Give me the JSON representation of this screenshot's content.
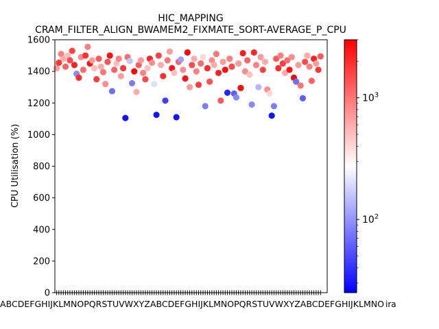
{
  "chart_data": {
    "type": "scatter",
    "title": "HIC_MAPPING",
    "subtitle": "CRAM_FILTER_ALIGN_BWAMEM2_FIXMATE_SORT-AVERAGE_P_CPU",
    "xlabel": "",
    "ylabel": "CPU Utilisation (%)",
    "ylim": [
      0,
      1600
    ],
    "yticks": [
      0,
      200,
      400,
      600,
      800,
      1000,
      1200,
      1400,
      1600
    ],
    "x_tick_labels_note": "dense overlapping species labels (unreadable), last ends with 'ira'",
    "x_tick_label_tail": "ira",
    "grid": false,
    "legend": "none",
    "colorbar": {
      "scale": "log",
      "range": [
        25,
        3000
      ],
      "ticks": [
        {
          "value": 100,
          "label": "10",
          "exp": "2"
        },
        {
          "value": 1000,
          "label": "10",
          "exp": "3"
        }
      ],
      "colormap": "bwr",
      "low_color": "#0000ff",
      "mid_color": "#ffffff",
      "high_color": "#ff0000"
    },
    "points": [
      {
        "x": 1,
        "y": 1420,
        "c": 700
      },
      {
        "x": 2,
        "y": 1455,
        "c": 1800
      },
      {
        "x": 3,
        "y": 1510,
        "c": 900
      },
      {
        "x": 4,
        "y": 1480,
        "c": 600
      },
      {
        "x": 5,
        "y": 1430,
        "c": 1200
      },
      {
        "x": 6,
        "y": 1500,
        "c": 500
      },
      {
        "x": 7,
        "y": 1470,
        "c": 1500
      },
      {
        "x": 8,
        "y": 1530,
        "c": 1600
      },
      {
        "x": 9,
        "y": 1440,
        "c": 2200
      },
      {
        "x": 10,
        "y": 1385,
        "c": 90
      },
      {
        "x": 11,
        "y": 1360,
        "c": 2000
      },
      {
        "x": 12,
        "y": 1490,
        "c": 800
      },
      {
        "x": 13,
        "y": 1410,
        "c": 1100
      },
      {
        "x": 14,
        "y": 1500,
        "c": 1900
      },
      {
        "x": 15,
        "y": 1555,
        "c": 900
      },
      {
        "x": 16,
        "y": 1450,
        "c": 2500
      },
      {
        "x": 17,
        "y": 1470,
        "c": 700
      },
      {
        "x": 18,
        "y": 1420,
        "c": 500
      },
      {
        "x": 19,
        "y": 1350,
        "c": 1700
      },
      {
        "x": 20,
        "y": 1480,
        "c": 1300
      },
      {
        "x": 21,
        "y": 1430,
        "c": 600
      },
      {
        "x": 22,
        "y": 1395,
        "c": 1000
      },
      {
        "x": 23,
        "y": 1320,
        "c": 800
      },
      {
        "x": 24,
        "y": 1460,
        "c": 1400
      },
      {
        "x": 25,
        "y": 1500,
        "c": 2600
      },
      {
        "x": 26,
        "y": 1275,
        "c": 70
      },
      {
        "x": 27,
        "y": 1410,
        "c": 1200
      },
      {
        "x": 28,
        "y": 1450,
        "c": 500
      },
      {
        "x": 29,
        "y": 1480,
        "c": 900
      },
      {
        "x": 30,
        "y": 1370,
        "c": 700
      },
      {
        "x": 31,
        "y": 1420,
        "c": 1800
      },
      {
        "x": 32,
        "y": 1105,
        "c": 30
      },
      {
        "x": 33,
        "y": 1490,
        "c": 1100
      },
      {
        "x": 34,
        "y": 1465,
        "c": 160
      },
      {
        "x": 35,
        "y": 1325,
        "c": 80
      },
      {
        "x": 36,
        "y": 1400,
        "c": 2800
      },
      {
        "x": 37,
        "y": 1270,
        "c": 600
      },
      {
        "x": 38,
        "y": 1440,
        "c": 1300
      },
      {
        "x": 39,
        "y": 1470,
        "c": 700
      },
      {
        "x": 40,
        "y": 1390,
        "c": 900
      },
      {
        "x": 41,
        "y": 1350,
        "c": 1500
      },
      {
        "x": 42,
        "y": 1420,
        "c": 500
      },
      {
        "x": 43,
        "y": 1480,
        "c": 2100
      },
      {
        "x": 44,
        "y": 1455,
        "c": 800
      },
      {
        "x": 45,
        "y": 1320,
        "c": 200
      },
      {
        "x": 46,
        "y": 1125,
        "c": 30
      },
      {
        "x": 47,
        "y": 1500,
        "c": 1600
      },
      {
        "x": 48,
        "y": 1440,
        "c": 600
      },
      {
        "x": 49,
        "y": 1370,
        "c": 1900
      },
      {
        "x": 50,
        "y": 1215,
        "c": 45
      },
      {
        "x": 51,
        "y": 1470,
        "c": 1000
      },
      {
        "x": 52,
        "y": 1525,
        "c": 700
      },
      {
        "x": 53,
        "y": 1420,
        "c": 2400
      },
      {
        "x": 54,
        "y": 1390,
        "c": 500
      },
      {
        "x": 55,
        "y": 1110,
        "c": 30
      },
      {
        "x": 56,
        "y": 1460,
        "c": 1200
      },
      {
        "x": 57,
        "y": 1475,
        "c": 110
      },
      {
        "x": 58,
        "y": 1410,
        "c": 800
      },
      {
        "x": 59,
        "y": 1355,
        "c": 2500
      },
      {
        "x": 60,
        "y": 1520,
        "c": 2900
      },
      {
        "x": 61,
        "y": 1300,
        "c": 700
      },
      {
        "x": 62,
        "y": 1440,
        "c": 1500
      },
      {
        "x": 63,
        "y": 1480,
        "c": 600
      },
      {
        "x": 64,
        "y": 1400,
        "c": 900
      },
      {
        "x": 65,
        "y": 1315,
        "c": 1700
      },
      {
        "x": 66,
        "y": 1450,
        "c": 1100
      },
      {
        "x": 67,
        "y": 1490,
        "c": 400
      },
      {
        "x": 68,
        "y": 1180,
        "c": 80
      },
      {
        "x": 69,
        "y": 1420,
        "c": 2000
      },
      {
        "x": 70,
        "y": 1335,
        "c": 1400
      },
      {
        "x": 71,
        "y": 1470,
        "c": 800
      },
      {
        "x": 72,
        "y": 1440,
        "c": 600
      },
      {
        "x": 73,
        "y": 1510,
        "c": 1000
      },
      {
        "x": 74,
        "y": 1390,
        "c": 2200
      },
      {
        "x": 75,
        "y": 1215,
        "c": 1300
      },
      {
        "x": 76,
        "y": 1460,
        "c": 700
      },
      {
        "x": 77,
        "y": 1410,
        "c": 2600
      },
      {
        "x": 78,
        "y": 1265,
        "c": 35
      },
      {
        "x": 79,
        "y": 1480,
        "c": 900
      },
      {
        "x": 80,
        "y": 1430,
        "c": 1500
      },
      {
        "x": 81,
        "y": 1260,
        "c": 60
      },
      {
        "x": 82,
        "y": 1235,
        "c": 90
      },
      {
        "x": 83,
        "y": 1450,
        "c": 700
      },
      {
        "x": 84,
        "y": 1295,
        "c": 2700
      },
      {
        "x": 85,
        "y": 1515,
        "c": 2300
      },
      {
        "x": 86,
        "y": 1400,
        "c": 800
      },
      {
        "x": 87,
        "y": 1470,
        "c": 1200
      },
      {
        "x": 88,
        "y": 1380,
        "c": 500
      },
      {
        "x": 89,
        "y": 1190,
        "c": 90
      },
      {
        "x": 90,
        "y": 1520,
        "c": 2100
      },
      {
        "x": 91,
        "y": 1440,
        "c": 900
      },
      {
        "x": 92,
        "y": 1300,
        "c": 140
      },
      {
        "x": 93,
        "y": 1490,
        "c": 700
      },
      {
        "x": 94,
        "y": 1410,
        "c": 1600
      },
      {
        "x": 95,
        "y": 1460,
        "c": 600
      },
      {
        "x": 96,
        "y": 1285,
        "c": 800
      },
      {
        "x": 97,
        "y": 1260,
        "c": 400
      },
      {
        "x": 98,
        "y": 1120,
        "c": 30
      },
      {
        "x": 99,
        "y": 1180,
        "c": 80
      },
      {
        "x": 100,
        "y": 1480,
        "c": 1300
      },
      {
        "x": 101,
        "y": 1420,
        "c": 2000
      },
      {
        "x": 102,
        "y": 1500,
        "c": 900
      },
      {
        "x": 103,
        "y": 1450,
        "c": 1700
      },
      {
        "x": 104,
        "y": 1390,
        "c": 600
      },
      {
        "x": 105,
        "y": 1470,
        "c": 1100
      },
      {
        "x": 106,
        "y": 1410,
        "c": 2500
      },
      {
        "x": 107,
        "y": 1490,
        "c": 800
      },
      {
        "x": 108,
        "y": 1360,
        "c": 2900
      },
      {
        "x": 109,
        "y": 1335,
        "c": 70
      },
      {
        "x": 110,
        "y": 1440,
        "c": 700
      },
      {
        "x": 111,
        "y": 1310,
        "c": 1000
      },
      {
        "x": 112,
        "y": 1230,
        "c": 60
      },
      {
        "x": 113,
        "y": 1460,
        "c": 1500
      },
      {
        "x": 114,
        "y": 1500,
        "c": 600
      },
      {
        "x": 115,
        "y": 1430,
        "c": 900
      },
      {
        "x": 116,
        "y": 1340,
        "c": 1200
      },
      {
        "x": 117,
        "y": 1480,
        "c": 2200
      },
      {
        "x": 118,
        "y": 1450,
        "c": 700
      },
      {
        "x": 119,
        "y": 1410,
        "c": 1800
      },
      {
        "x": 120,
        "y": 1495,
        "c": 1300
      }
    ]
  }
}
